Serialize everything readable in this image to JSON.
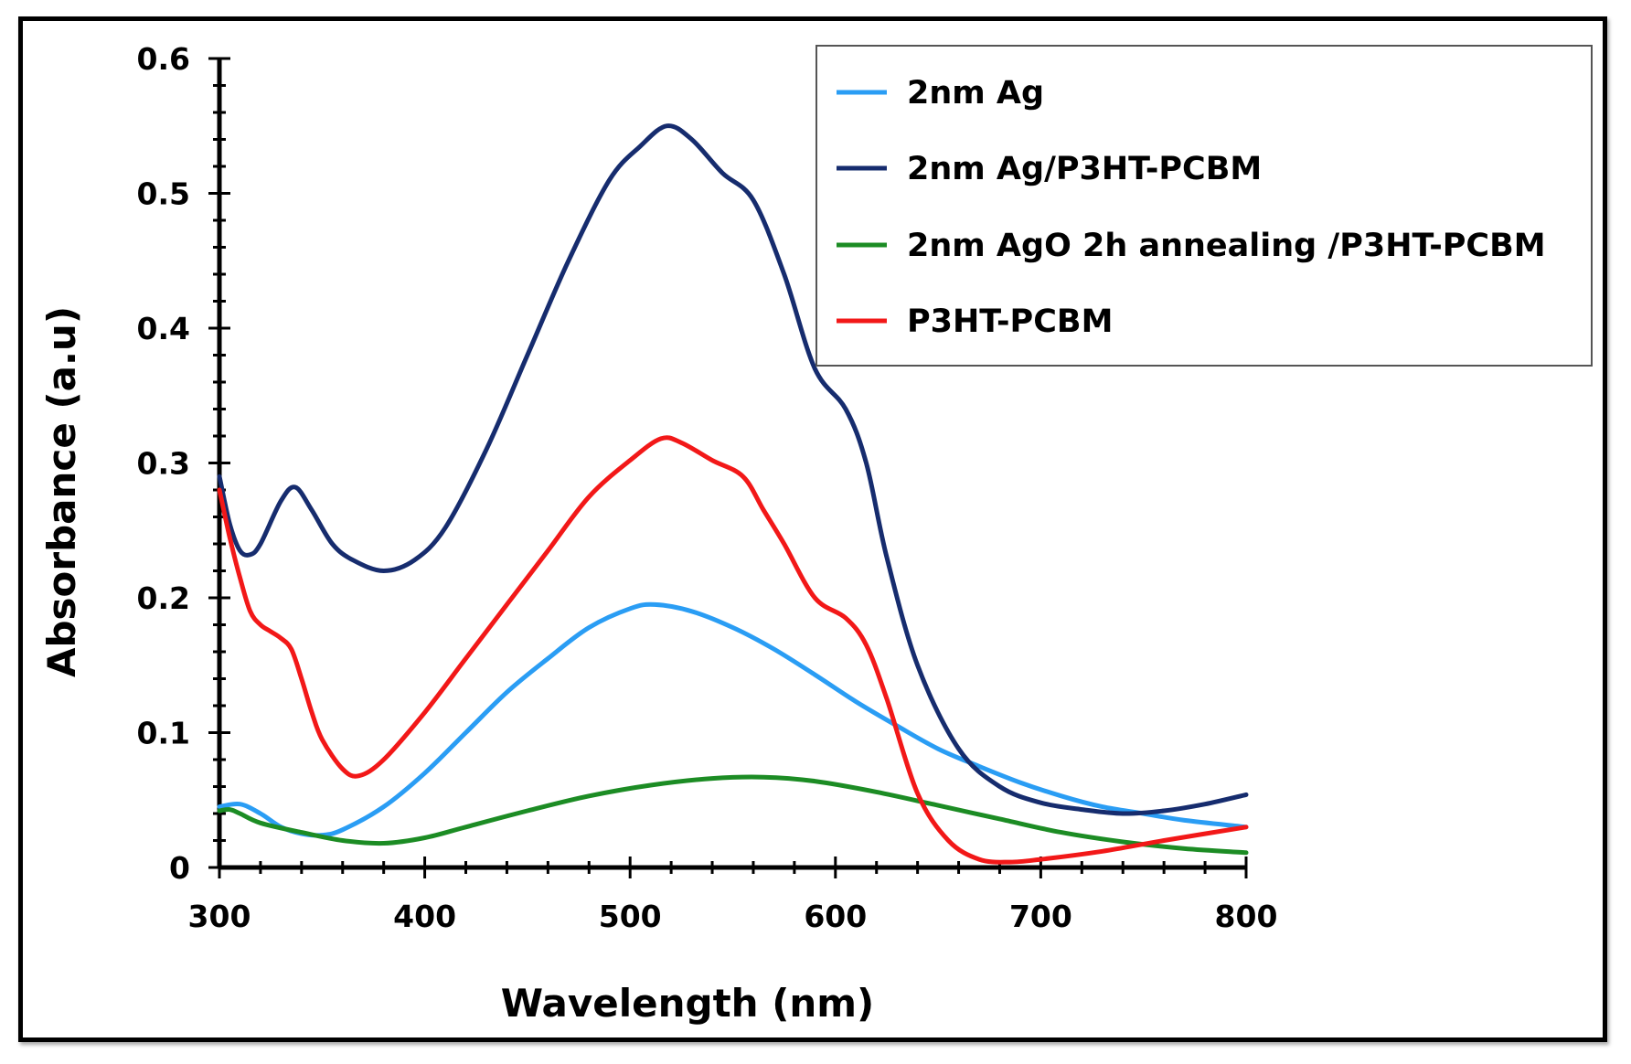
{
  "chart_data": {
    "type": "line",
    "title": "",
    "xlabel": "Wavelength (nm)",
    "ylabel": "Absorbance (a.u)",
    "xlim": [
      300,
      800
    ],
    "ylim": [
      0,
      0.6
    ],
    "xticks": [
      300,
      400,
      500,
      600,
      700,
      800
    ],
    "xtick_labels": [
      "300",
      "400",
      "500",
      "600",
      "700",
      "800"
    ],
    "yticks": [
      0,
      0.1,
      0.2,
      0.3,
      0.4,
      0.5,
      0.6
    ],
    "ytick_labels": [
      "0",
      "0.1",
      "0.2",
      "0.3",
      "0.4",
      "0.5",
      "0.6"
    ],
    "grid": false,
    "legend_position": "top-right",
    "series": [
      {
        "name": "2nm Ag",
        "color": "#2A9DF4",
        "x": [
          300,
          310,
          320,
          330,
          340,
          350,
          360,
          380,
          400,
          420,
          440,
          460,
          480,
          500,
          512,
          530,
          550,
          570,
          590,
          610,
          630,
          650,
          670,
          690,
          710,
          730,
          750,
          770,
          800
        ],
        "y": [
          0.045,
          0.047,
          0.04,
          0.03,
          0.025,
          0.024,
          0.028,
          0.045,
          0.07,
          0.1,
          0.13,
          0.155,
          0.178,
          0.192,
          0.195,
          0.19,
          0.178,
          0.162,
          0.143,
          0.123,
          0.105,
          0.088,
          0.075,
          0.063,
          0.053,
          0.045,
          0.04,
          0.035,
          0.03
        ]
      },
      {
        "name": "2nm Ag/P3HT-PCBM",
        "color": "#162C6E",
        "x": [
          300,
          305,
          310,
          315,
          320,
          330,
          337,
          345,
          355,
          365,
          380,
          395,
          410,
          430,
          450,
          470,
          490,
          505,
          518,
          530,
          545,
          560,
          575,
          590,
          605,
          615,
          625,
          640,
          660,
          680,
          700,
          720,
          740,
          760,
          780,
          800
        ],
        "y": [
          0.29,
          0.255,
          0.235,
          0.232,
          0.24,
          0.272,
          0.282,
          0.265,
          0.24,
          0.228,
          0.22,
          0.228,
          0.252,
          0.31,
          0.38,
          0.45,
          0.51,
          0.535,
          0.55,
          0.54,
          0.515,
          0.495,
          0.44,
          0.37,
          0.34,
          0.3,
          0.23,
          0.15,
          0.088,
          0.06,
          0.048,
          0.043,
          0.04,
          0.042,
          0.047,
          0.054
        ]
      },
      {
        "name": "2nm AgO 2h annealing /P3HT-PCBM",
        "color": "#1C8C24",
        "x": [
          300,
          305,
          310,
          320,
          340,
          360,
          380,
          400,
          420,
          450,
          480,
          510,
          540,
          565,
          590,
          620,
          650,
          680,
          710,
          740,
          770,
          800
        ],
        "y": [
          0.042,
          0.043,
          0.04,
          0.033,
          0.026,
          0.02,
          0.018,
          0.022,
          0.03,
          0.042,
          0.053,
          0.061,
          0.066,
          0.067,
          0.064,
          0.056,
          0.046,
          0.036,
          0.026,
          0.019,
          0.014,
          0.011
        ]
      },
      {
        "name": "P3HT-PCBM",
        "color": "#F21818",
        "x": [
          300,
          305,
          310,
          315,
          320,
          325,
          330,
          335,
          340,
          345,
          350,
          360,
          368,
          380,
          400,
          420,
          440,
          460,
          480,
          500,
          515,
          525,
          540,
          555,
          565,
          575,
          590,
          605,
          615,
          625,
          640,
          655,
          670,
          685,
          700,
          730,
          760,
          800
        ],
        "y": [
          0.28,
          0.245,
          0.215,
          0.19,
          0.18,
          0.175,
          0.17,
          0.162,
          0.14,
          0.115,
          0.095,
          0.073,
          0.068,
          0.08,
          0.115,
          0.155,
          0.195,
          0.235,
          0.275,
          0.302,
          0.318,
          0.315,
          0.302,
          0.29,
          0.265,
          0.24,
          0.2,
          0.185,
          0.165,
          0.125,
          0.055,
          0.02,
          0.006,
          0.004,
          0.006,
          0.012,
          0.02,
          0.03
        ]
      }
    ]
  }
}
